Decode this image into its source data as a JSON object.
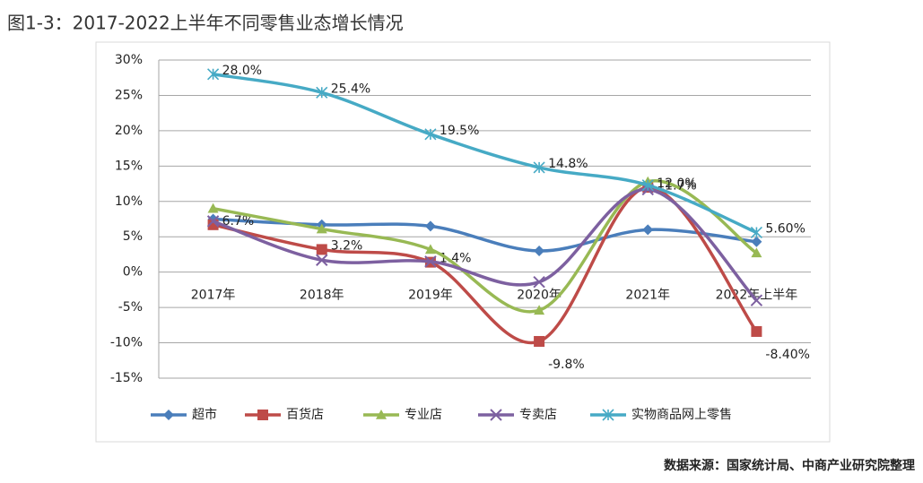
{
  "chart_data": {
    "type": "line",
    "title": "图1-3：2017-2022上半年不同零售业态增长情况",
    "source": "数据来源：国家统计局、中商产业研究院整理",
    "categories": [
      "2017年",
      "2018年",
      "2019年",
      "2020年",
      "2021年",
      "2022年上半年"
    ],
    "series": [
      {
        "name": "超市",
        "color": "#4a7ebb",
        "marker": "diamond",
        "values": [
          7.5,
          6.7,
          6.5,
          3.0,
          6.0,
          4.3
        ]
      },
      {
        "name": "百货店",
        "color": "#be4b48",
        "marker": "square",
        "values": [
          6.7,
          3.2,
          1.4,
          -9.8,
          12.0,
          -8.4
        ],
        "value_labels": [
          "6.7%",
          "3.2%",
          "1.4%",
          "-9.8%",
          "12.0%",
          "-8.40%"
        ]
      },
      {
        "name": "专业店",
        "color": "#98b954",
        "marker": "triangle",
        "values": [
          9.0,
          6.1,
          3.2,
          -5.4,
          12.8,
          2.7
        ]
      },
      {
        "name": "专卖店",
        "color": "#7d60a0",
        "marker": "x",
        "values": [
          7.2,
          1.7,
          1.5,
          -1.4,
          11.7,
          -4.0
        ],
        "value_labels": [
          null,
          null,
          null,
          null,
          "11.7%",
          null
        ]
      },
      {
        "name": "实物商品网上零售",
        "color": "#46aac5",
        "marker": "star",
        "values": [
          28.0,
          25.4,
          19.5,
          14.8,
          12.3,
          5.6
        ],
        "value_labels": [
          "28.0%",
          "25.4%",
          "19.5%",
          "14.8%",
          null,
          "5.60%"
        ]
      }
    ],
    "ylim": [
      -15,
      30
    ],
    "yticks": [
      {
        "value": -15,
        "label": "-15%"
      },
      {
        "value": -10,
        "label": "-10%"
      },
      {
        "value": -5,
        "label": "-5%"
      },
      {
        "value": 0,
        "label": "0%"
      },
      {
        "value": 5,
        "label": "5%"
      },
      {
        "value": 10,
        "label": "10%"
      },
      {
        "value": 15,
        "label": "15%"
      },
      {
        "value": 20,
        "label": "20%"
      },
      {
        "value": 25,
        "label": "25%"
      },
      {
        "value": 30,
        "label": "30%"
      }
    ],
    "grid": true,
    "legend": "bottom"
  }
}
